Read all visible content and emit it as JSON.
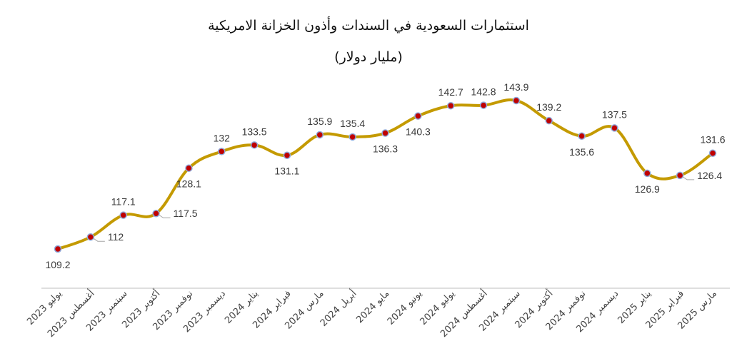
{
  "chart_data": {
    "type": "line",
    "title": "استثمارات السعودية في السندات وأذون الخزانة الامريكية",
    "subtitle": "(مليار دولار)",
    "xlabel": "",
    "ylabel": "",
    "ylim": [
      100,
      150
    ],
    "grid": false,
    "categories": [
      "يوليو 2023",
      "أغسطس 2023",
      "سبتمبر 2023",
      "أكتوبر 2023",
      "نوفمبر 2023",
      "ديسمبر 2023",
      "يناير 2024",
      "فبراير 2024",
      "مارس 2024",
      "أبريل 2024",
      "مايو 2024",
      "يونيو 2024",
      "يوليو 2024",
      "أغسطس 2024",
      "سبتمبر 2024",
      "أكتوبر 2024",
      "نوفمبر 2024",
      "ديسمبر 2024",
      "يناير 2025",
      "فبراير 2025",
      "مارس 2025"
    ],
    "values": [
      109.2,
      112,
      117.1,
      117.5,
      128.1,
      132,
      133.5,
      131.1,
      135.9,
      135.4,
      136.3,
      140.3,
      142.7,
      142.8,
      143.9,
      139.2,
      135.6,
      137.5,
      126.9,
      126.4,
      131.6
    ],
    "data_labels": [
      "109.2",
      "112",
      "117.1",
      "117.5",
      "128.1",
      "132",
      "133.5",
      "131.1",
      "135.9",
      "135.4",
      "136.3",
      "140.3",
      "142.7",
      "142.8",
      "143.9",
      "139.2",
      "135.6",
      "137.5",
      "126.9",
      "126.4",
      "131.6"
    ],
    "label_positions": [
      "below",
      "right",
      "above",
      "right",
      "below",
      "above",
      "above",
      "below",
      "above",
      "above",
      "below",
      "below",
      "above",
      "above",
      "above",
      "above",
      "below",
      "above",
      "below",
      "right",
      "above"
    ],
    "colors": {
      "line": "#C49A00",
      "marker_fill": "#C00000",
      "marker_edge": "#8FAADC",
      "axis": "#BFBFBF"
    }
  }
}
